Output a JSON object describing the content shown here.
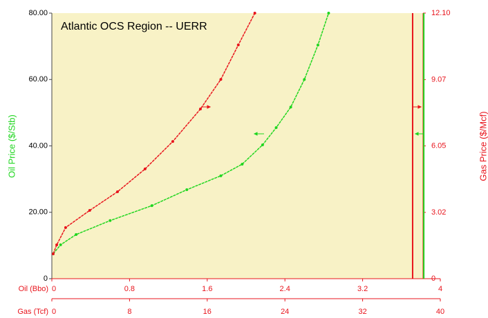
{
  "chart_data": {
    "type": "line",
    "title": "Atlantic OCS Region  -- UERR",
    "ylabel": "Oil Price ($/Stb)",
    "y2label": "Gas Price ($/Mcf)",
    "xlabel": "Oil (Bbo)",
    "x2label": "Gas (Tcf)",
    "xlim": [
      0,
      4
    ],
    "xticks": [
      0,
      0.8,
      1.6,
      2.4,
      3.2,
      4
    ],
    "x2lim": [
      0,
      40
    ],
    "x2ticks": [
      0,
      8,
      16,
      24,
      32,
      40
    ],
    "ylim": [
      0,
      80
    ],
    "yticks": [
      0,
      {
        "value": 20,
        "label": "20.00"
      },
      {
        "value": 40,
        "label": "40.00"
      },
      {
        "value": 60,
        "label": "60.00"
      },
      {
        "value": 80,
        "label": "80.00"
      }
    ],
    "y2lim": [
      0,
      12.1
    ],
    "y2ticks": [
      0,
      3.02,
      6.05,
      9.07,
      {
        "value": 12.1,
        "label": "12.10"
      }
    ],
    "series": [
      {
        "color": "#1fd61f",
        "xaxis": "x",
        "axis": "y",
        "x": [
          0.014,
          0.09,
          0.25,
          0.6,
          1.03,
          1.39,
          1.74,
          1.96,
          2.17,
          2.31,
          2.46,
          2.6,
          2.74,
          2.85
        ],
        "values": [
          7.5,
          10.2,
          13.3,
          17.5,
          22,
          26.8,
          31,
          34.5,
          40.3,
          45.5,
          51.7,
          60,
          70.4,
          80
        ]
      },
      {
        "color": "#e8141c",
        "xaxis": "x2",
        "axis": "y2",
        "x": [
          0.14,
          0.5,
          1.42,
          3.9,
          6.76,
          9.6,
          12.45,
          15.3,
          17.4,
          19.2,
          20.9
        ],
        "values": [
          1.13,
          1.54,
          2.33,
          3.11,
          3.96,
          5.0,
          6.25,
          7.73,
          9.08,
          10.65,
          12.1
        ]
      }
    ],
    "vlines": [
      {
        "xaxis": "x2",
        "value": 37.15,
        "color": "#e8141c"
      },
      {
        "xaxis": "x",
        "value": 3.83,
        "color": "#1fd61f"
      }
    ]
  }
}
